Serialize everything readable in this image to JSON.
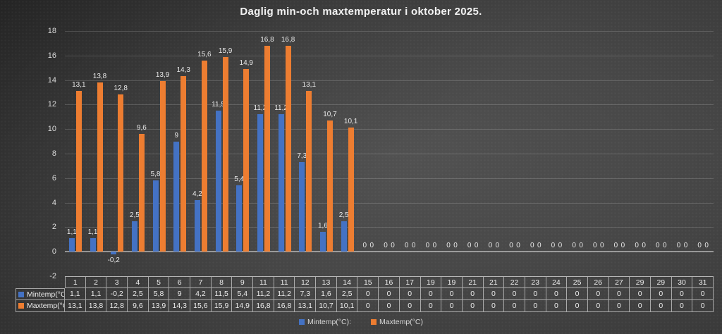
{
  "title": "Daglig min-och maxtemperatur i oktober 2025.",
  "legend": {
    "min_label": "Mintemp(°C):",
    "max_label": "Maxtemp(°C)"
  },
  "colors": {
    "min_series": "#4472C4",
    "max_series": "#ED7D31",
    "title_text": "#f2f2f2",
    "label_text": "#e8e8e8"
  },
  "chart_data": {
    "type": "bar",
    "title": "Daglig min-och maxtemperatur i oktober 2025.",
    "categories": [
      "1",
      "2",
      "3",
      "4",
      "5",
      "6",
      "7",
      "8",
      "9",
      "11",
      "11",
      "12",
      "13",
      "14",
      "15",
      "16",
      "17",
      "19",
      "19",
      "21",
      "21",
      "22",
      "23",
      "24",
      "25",
      "26",
      "27",
      "29",
      "29",
      "30",
      "31"
    ],
    "series": [
      {
        "name": "Mintemp(°C):",
        "color": "#4472C4",
        "values": [
          1.1,
          1.1,
          -0.2,
          2.5,
          5.8,
          9,
          4.2,
          11.5,
          5.4,
          11.2,
          11.2,
          7.3,
          1.6,
          2.5,
          0,
          0,
          0,
          0,
          0,
          0,
          0,
          0,
          0,
          0,
          0,
          0,
          0,
          0,
          0,
          0,
          0
        ]
      },
      {
        "name": "Maxtemp(°C)",
        "color": "#ED7D31",
        "values": [
          13.1,
          13.8,
          12.8,
          9.6,
          13.9,
          14.3,
          15.6,
          15.9,
          14.9,
          16.8,
          16.8,
          13.1,
          10.7,
          10.1,
          0,
          0,
          0,
          0,
          0,
          0,
          0,
          0,
          0,
          0,
          0,
          0,
          0,
          0,
          0,
          0,
          0
        ]
      }
    ],
    "xlabel": "",
    "ylabel": "",
    "ylim": [
      -2,
      18
    ],
    "y_ticks": [
      18,
      16,
      14,
      12,
      10,
      8,
      6,
      4,
      2,
      0,
      -2
    ],
    "grid": true,
    "legend_position": "bottom",
    "data_table": true,
    "decimal_separator": ","
  }
}
